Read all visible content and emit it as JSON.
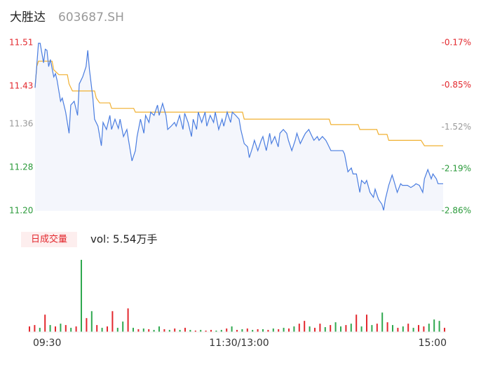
{
  "chart_data": [
    {
      "type": "line",
      "title": "大胜达",
      "subtitle": "603687.SH",
      "xlim": [
        0,
        240
      ],
      "ylim": [
        11.2,
        11.51
      ],
      "yticks": [
        {
          "value": 11.2,
          "label": "11.20"
        },
        11.28,
        11.36,
        11.43,
        11.51
      ],
      "ytick_colors": [
        "#2a9a3a",
        "#2a9a3a",
        "#999999",
        "#e3282e",
        "#e3282e"
      ],
      "y2lim": [
        -2.86,
        -0.17
      ],
      "y2ticks": [
        {
          "value": -2.86,
          "label": "-2.86%"
        },
        {
          "value": -2.19,
          "label": "-2.19%"
        },
        {
          "value": -1.52,
          "label": "-1.52%"
        },
        {
          "value": -0.85,
          "label": "-0.85%"
        },
        {
          "value": -0.17,
          "label": "-0.17%"
        }
      ],
      "area_color": "#f4f6fc",
      "series": [
        {
          "color": "#4a7de0",
          "x": [
            0,
            2,
            3,
            5,
            6,
            7,
            8,
            9,
            11,
            12,
            13,
            15,
            16,
            18,
            20,
            21,
            23,
            25,
            26,
            28,
            30,
            31,
            32,
            34,
            35,
            37,
            39,
            40,
            42,
            44,
            45,
            47,
            49,
            50,
            52,
            54,
            55,
            57,
            59,
            60,
            62,
            64,
            65,
            67,
            68,
            70,
            72,
            73,
            75,
            77,
            78,
            80,
            82,
            83,
            85,
            87,
            88,
            90,
            92,
            93,
            95,
            96,
            98,
            100,
            101,
            103,
            105,
            106,
            108,
            110,
            111,
            113,
            115,
            116,
            118,
            120,
            121,
            123,
            125,
            126,
            128,
            129,
            131,
            133,
            134,
            136,
            138,
            139,
            141,
            143,
            144,
            146,
            148,
            149,
            151,
            153,
            154,
            156,
            158,
            159,
            161,
            162,
            164,
            166,
            167,
            169,
            171,
            172,
            174,
            176,
            177,
            179,
            181,
            182,
            184,
            186,
            187,
            189,
            191,
            192,
            194,
            195,
            197,
            199,
            200,
            202,
            204,
            205,
            206,
            208,
            210,
            211,
            213,
            215,
            216,
            218,
            219,
            221,
            223,
            224,
            226,
            228,
            229,
            231,
            233,
            234,
            236,
            237,
            240
          ],
          "values": [
            11.427,
            11.509,
            11.509,
            11.473,
            11.498,
            11.496,
            11.466,
            11.479,
            11.447,
            11.453,
            11.44,
            11.402,
            11.408,
            11.382,
            11.343,
            11.395,
            11.402,
            11.376,
            11.434,
            11.447,
            11.466,
            11.496,
            11.46,
            11.408,
            11.369,
            11.356,
            11.32,
            11.363,
            11.35,
            11.376,
            11.35,
            11.369,
            11.352,
            11.369,
            11.337,
            11.35,
            11.33,
            11.292,
            11.311,
            11.337,
            11.369,
            11.343,
            11.376,
            11.363,
            11.382,
            11.376,
            11.395,
            11.376,
            11.398,
            11.376,
            11.35,
            11.356,
            11.363,
            11.356,
            11.376,
            11.35,
            11.38,
            11.363,
            11.337,
            11.369,
            11.35,
            11.382,
            11.363,
            11.382,
            11.356,
            11.376,
            11.363,
            11.382,
            11.35,
            11.369,
            11.356,
            11.382,
            11.363,
            11.382,
            11.376,
            11.369,
            11.35,
            11.324,
            11.318,
            11.298,
            11.318,
            11.33,
            11.311,
            11.33,
            11.337,
            11.311,
            11.343,
            11.324,
            11.337,
            11.318,
            11.343,
            11.35,
            11.343,
            11.33,
            11.311,
            11.33,
            11.343,
            11.324,
            11.337,
            11.343,
            11.35,
            11.343,
            11.33,
            11.337,
            11.33,
            11.337,
            11.33,
            11.324,
            11.311,
            11.311,
            11.311,
            11.311,
            11.311,
            11.305,
            11.272,
            11.279,
            11.268,
            11.268,
            11.234,
            11.256,
            11.25,
            11.256,
            11.234,
            11.225,
            11.24,
            11.221,
            11.212,
            11.201,
            11.221,
            11.247,
            11.266,
            11.256,
            11.234,
            11.25,
            11.247,
            11.247,
            11.247,
            11.243,
            11.247,
            11.25,
            11.247,
            11.234,
            11.259,
            11.276,
            11.259,
            11.268,
            11.259,
            11.25,
            11.25
          ]
        },
        {
          "color": "#f0b030",
          "x": [
            0,
            1,
            2,
            10,
            11,
            14,
            19,
            20,
            22,
            35,
            36,
            38,
            44,
            45,
            58,
            59,
            122,
            123,
            173,
            174,
            190,
            191,
            201,
            202,
            207,
            208,
            227,
            229,
            240
          ],
          "values": [
            11.427,
            11.466,
            11.476,
            11.476,
            11.46,
            11.451,
            11.451,
            11.434,
            11.421,
            11.421,
            11.408,
            11.399,
            11.399,
            11.389,
            11.389,
            11.382,
            11.382,
            11.369,
            11.369,
            11.359,
            11.359,
            11.35,
            11.35,
            11.341,
            11.341,
            11.33,
            11.33,
            11.32,
            11.32
          ]
        }
      ]
    },
    {
      "type": "bar",
      "title": "日成交量",
      "volume_label": "vol: 5.54万手",
      "xlim": [
        0,
        240
      ],
      "xticks": [
        {
          "value": 0,
          "label": "09:30"
        },
        {
          "value": 120,
          "label": "11:30/13:00"
        },
        {
          "value": 240,
          "label": "15:00"
        }
      ],
      "ylim": [
        0,
        105
      ],
      "x": [
        0,
        3,
        6,
        9,
        12,
        15,
        18,
        21,
        24,
        27,
        30,
        33,
        36,
        39,
        42,
        45,
        48,
        51,
        54,
        57,
        60,
        63,
        66,
        69,
        72,
        75,
        78,
        81,
        84,
        87,
        90,
        93,
        96,
        99,
        102,
        105,
        108,
        111,
        114,
        117,
        120,
        123,
        126,
        129,
        132,
        135,
        138,
        141,
        144,
        147,
        150,
        153,
        156,
        159,
        162,
        165,
        168,
        171,
        174,
        177,
        180,
        183,
        186,
        189,
        192,
        195,
        198,
        201,
        204,
        207,
        210,
        213,
        216,
        219,
        222,
        225,
        228,
        231,
        234,
        237,
        240
      ],
      "values": [
        8,
        10,
        6,
        25,
        10,
        8,
        12,
        10,
        6,
        8,
        104,
        20,
        30,
        10,
        6,
        8,
        30,
        6,
        15,
        34,
        6,
        4,
        5,
        4,
        3,
        8,
        4,
        3,
        5,
        3,
        6,
        3,
        2,
        3,
        2,
        3,
        2,
        3,
        5,
        8,
        3,
        4,
        5,
        3,
        4,
        4,
        3,
        5,
        4,
        6,
        5,
        8,
        12,
        16,
        8,
        6,
        12,
        7,
        10,
        14,
        8,
        10,
        12,
        25,
        8,
        25,
        10,
        12,
        28,
        14,
        10,
        6,
        8,
        12,
        6,
        10,
        8,
        12,
        18,
        16,
        6
      ],
      "colors": [
        "#e3282e",
        "#e3282e",
        "#2fa84f",
        "#e3282e",
        "#2fa84f",
        "#e3282e",
        "#2fa84f",
        "#e3282e",
        "#2fa84f",
        "#e3282e",
        "#2fa84f",
        "#e3282e",
        "#2fa84f",
        "#e3282e",
        "#2fa84f",
        "#e3282e",
        "#e3282e",
        "#2fa84f",
        "#2fa84f",
        "#e3282e",
        "#2fa84f",
        "#e3282e",
        "#2fa84f",
        "#e3282e",
        "#2fa84f",
        "#2fa84f",
        "#e3282e",
        "#2fa84f",
        "#e3282e",
        "#2fa84f",
        "#e3282e",
        "#2fa84f",
        "#e3282e",
        "#2fa84f",
        "#e3282e",
        "#e3282e",
        "#2fa84f",
        "#2fa84f",
        "#e3282e",
        "#2fa84f",
        "#e3282e",
        "#2fa84f",
        "#e3282e",
        "#2fa84f",
        "#e3282e",
        "#2fa84f",
        "#e3282e",
        "#2fa84f",
        "#e3282e",
        "#2fa84f",
        "#e3282e",
        "#2fa84f",
        "#e3282e",
        "#e3282e",
        "#2fa84f",
        "#e3282e",
        "#e3282e",
        "#2fa84f",
        "#e3282e",
        "#2fa84f",
        "#2fa84f",
        "#e3282e",
        "#2fa84f",
        "#e3282e",
        "#2fa84f",
        "#e3282e",
        "#2fa84f",
        "#e3282e",
        "#2fa84f",
        "#e3282e",
        "#2fa84f",
        "#e3282e",
        "#2fa84f",
        "#e3282e",
        "#2fa84f",
        "#e3282e",
        "#e3282e",
        "#2fa84f",
        "#2fa84f",
        "#2fa84f",
        "#e3282e"
      ]
    }
  ]
}
